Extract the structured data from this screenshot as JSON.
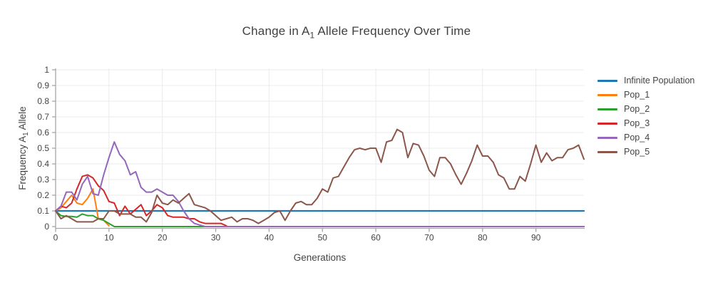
{
  "title": {
    "prefix": "Change in A",
    "sub": "1",
    "suffix": " Allele Frequency Over Time"
  },
  "xaxis": {
    "title": "Generations",
    "ticks": [
      0,
      10,
      20,
      30,
      40,
      50,
      60,
      70,
      80,
      90
    ],
    "range": [
      0,
      99
    ]
  },
  "yaxis": {
    "title_prefix": "Frequency A",
    "title_sub": "1",
    "title_suffix": " Allele",
    "ticks": [
      0,
      0.1,
      0.2,
      0.3,
      0.4,
      0.5,
      0.6,
      0.7,
      0.8,
      0.9,
      1
    ],
    "tick_labels": [
      "0",
      "0.1",
      "0.2",
      "0.3",
      "0.4",
      "0.5",
      "0.6",
      "0.7",
      "0.8",
      "0.9",
      "1"
    ],
    "range": [
      0,
      1
    ]
  },
  "colors": {
    "text": "#444444",
    "title_text": "#404040",
    "axis_line": "#a6a6a6",
    "grid": "#ebebeb",
    "plot_bg": "#ffffff"
  },
  "legend": {
    "items": [
      "Infinite Population",
      "Pop_1",
      "Pop_2",
      "Pop_3",
      "Pop_4",
      "Pop_5"
    ]
  },
  "chart_data": {
    "type": "line",
    "title": "Change in A1 Allele Frequency Over Time",
    "xlabel": "Generations",
    "ylabel": "Frequency A1 Allele",
    "xlim": [
      0,
      99
    ],
    "ylim": [
      0,
      1
    ],
    "grid": true,
    "legend_position": "right",
    "series": [
      {
        "name": "Infinite Population",
        "color": "#1f77b4",
        "width": 2.2,
        "x": [
          0,
          99
        ],
        "y": [
          0.1,
          0.1
        ]
      },
      {
        "name": "Pop_1",
        "color": "#ff7f0e",
        "width": 2,
        "x": [
          0,
          1,
          2,
          3,
          4,
          5,
          6,
          7,
          8,
          9,
          10
        ],
        "y": [
          0.1,
          0.12,
          0.16,
          0.2,
          0.15,
          0.14,
          0.18,
          0.24,
          0.05,
          0.04,
          0.005
        ]
      },
      {
        "name": "Pop_2",
        "color": "#2ca02c",
        "width": 2,
        "x": [
          0,
          1,
          2,
          3,
          4,
          5,
          6,
          7,
          8,
          9,
          10,
          11,
          99
        ],
        "y": [
          0.1,
          0.07,
          0.065,
          0.065,
          0.06,
          0.08,
          0.07,
          0.07,
          0.05,
          0.04,
          0.02,
          0.0,
          0.0
        ]
      },
      {
        "name": "Pop_3",
        "color": "#d62728",
        "width": 2,
        "x": [
          0,
          1,
          2,
          3,
          4,
          5,
          6,
          7,
          8,
          9,
          10,
          11,
          12,
          13,
          14,
          15,
          16,
          17,
          18,
          19,
          20,
          21,
          22,
          23,
          24,
          25,
          26,
          27,
          28,
          29,
          30,
          31,
          32
        ],
        "y": [
          0.1,
          0.13,
          0.12,
          0.15,
          0.24,
          0.32,
          0.33,
          0.31,
          0.26,
          0.23,
          0.16,
          0.15,
          0.07,
          0.13,
          0.08,
          0.11,
          0.14,
          0.07,
          0.1,
          0.14,
          0.12,
          0.07,
          0.06,
          0.06,
          0.06,
          0.05,
          0.05,
          0.03,
          0.02,
          0.02,
          0.02,
          0.02,
          0.005
        ]
      },
      {
        "name": "Pop_4",
        "color": "#9467bd",
        "width": 2,
        "x": [
          0,
          1,
          2,
          3,
          4,
          5,
          6,
          7,
          8,
          9,
          10,
          11,
          12,
          13,
          14,
          15,
          16,
          17,
          18,
          19,
          20,
          21,
          22,
          23,
          24,
          25,
          26,
          27,
          28,
          99
        ],
        "y": [
          0.1,
          0.13,
          0.22,
          0.22,
          0.17,
          0.27,
          0.32,
          0.21,
          0.2,
          0.33,
          0.44,
          0.54,
          0.46,
          0.42,
          0.33,
          0.35,
          0.25,
          0.22,
          0.22,
          0.24,
          0.22,
          0.2,
          0.2,
          0.16,
          0.1,
          0.05,
          0.02,
          0.01,
          0.0,
          0.0
        ]
      },
      {
        "name": "Pop_5",
        "color": "#8c564b",
        "width": 2,
        "x": [
          0,
          1,
          2,
          3,
          4,
          5,
          6,
          7,
          8,
          9,
          10,
          11,
          12,
          13,
          14,
          15,
          16,
          17,
          18,
          19,
          20,
          21,
          22,
          23,
          24,
          25,
          26,
          27,
          28,
          29,
          30,
          31,
          32,
          33,
          34,
          35,
          36,
          37,
          38,
          39,
          40,
          41,
          42,
          43,
          44,
          45,
          46,
          47,
          48,
          49,
          50,
          51,
          52,
          53,
          54,
          55,
          56,
          57,
          58,
          59,
          60,
          61,
          62,
          63,
          64,
          65,
          66,
          67,
          68,
          69,
          70,
          71,
          72,
          73,
          74,
          75,
          76,
          77,
          78,
          79,
          80,
          81,
          82,
          83,
          84,
          85,
          86,
          87,
          88,
          89,
          90,
          91,
          92,
          93,
          94,
          95,
          96,
          97,
          98,
          99
        ],
        "y": [
          0.1,
          0.05,
          0.07,
          0.05,
          0.03,
          0.03,
          0.03,
          0.03,
          0.05,
          0.05,
          0.1,
          0.1,
          0.08,
          0.08,
          0.08,
          0.06,
          0.06,
          0.03,
          0.09,
          0.2,
          0.15,
          0.14,
          0.17,
          0.15,
          0.18,
          0.21,
          0.14,
          0.13,
          0.12,
          0.1,
          0.07,
          0.04,
          0.05,
          0.06,
          0.03,
          0.05,
          0.05,
          0.04,
          0.02,
          0.04,
          0.06,
          0.09,
          0.1,
          0.04,
          0.1,
          0.15,
          0.16,
          0.14,
          0.14,
          0.18,
          0.24,
          0.22,
          0.31,
          0.32,
          0.38,
          0.44,
          0.49,
          0.5,
          0.49,
          0.5,
          0.5,
          0.41,
          0.54,
          0.55,
          0.62,
          0.6,
          0.44,
          0.53,
          0.52,
          0.45,
          0.36,
          0.32,
          0.44,
          0.44,
          0.4,
          0.33,
          0.27,
          0.34,
          0.42,
          0.52,
          0.45,
          0.45,
          0.41,
          0.33,
          0.31,
          0.24,
          0.24,
          0.32,
          0.29,
          0.4,
          0.52,
          0.41,
          0.47,
          0.42,
          0.44,
          0.44,
          0.49,
          0.5,
          0.52,
          0.43
        ]
      }
    ]
  }
}
